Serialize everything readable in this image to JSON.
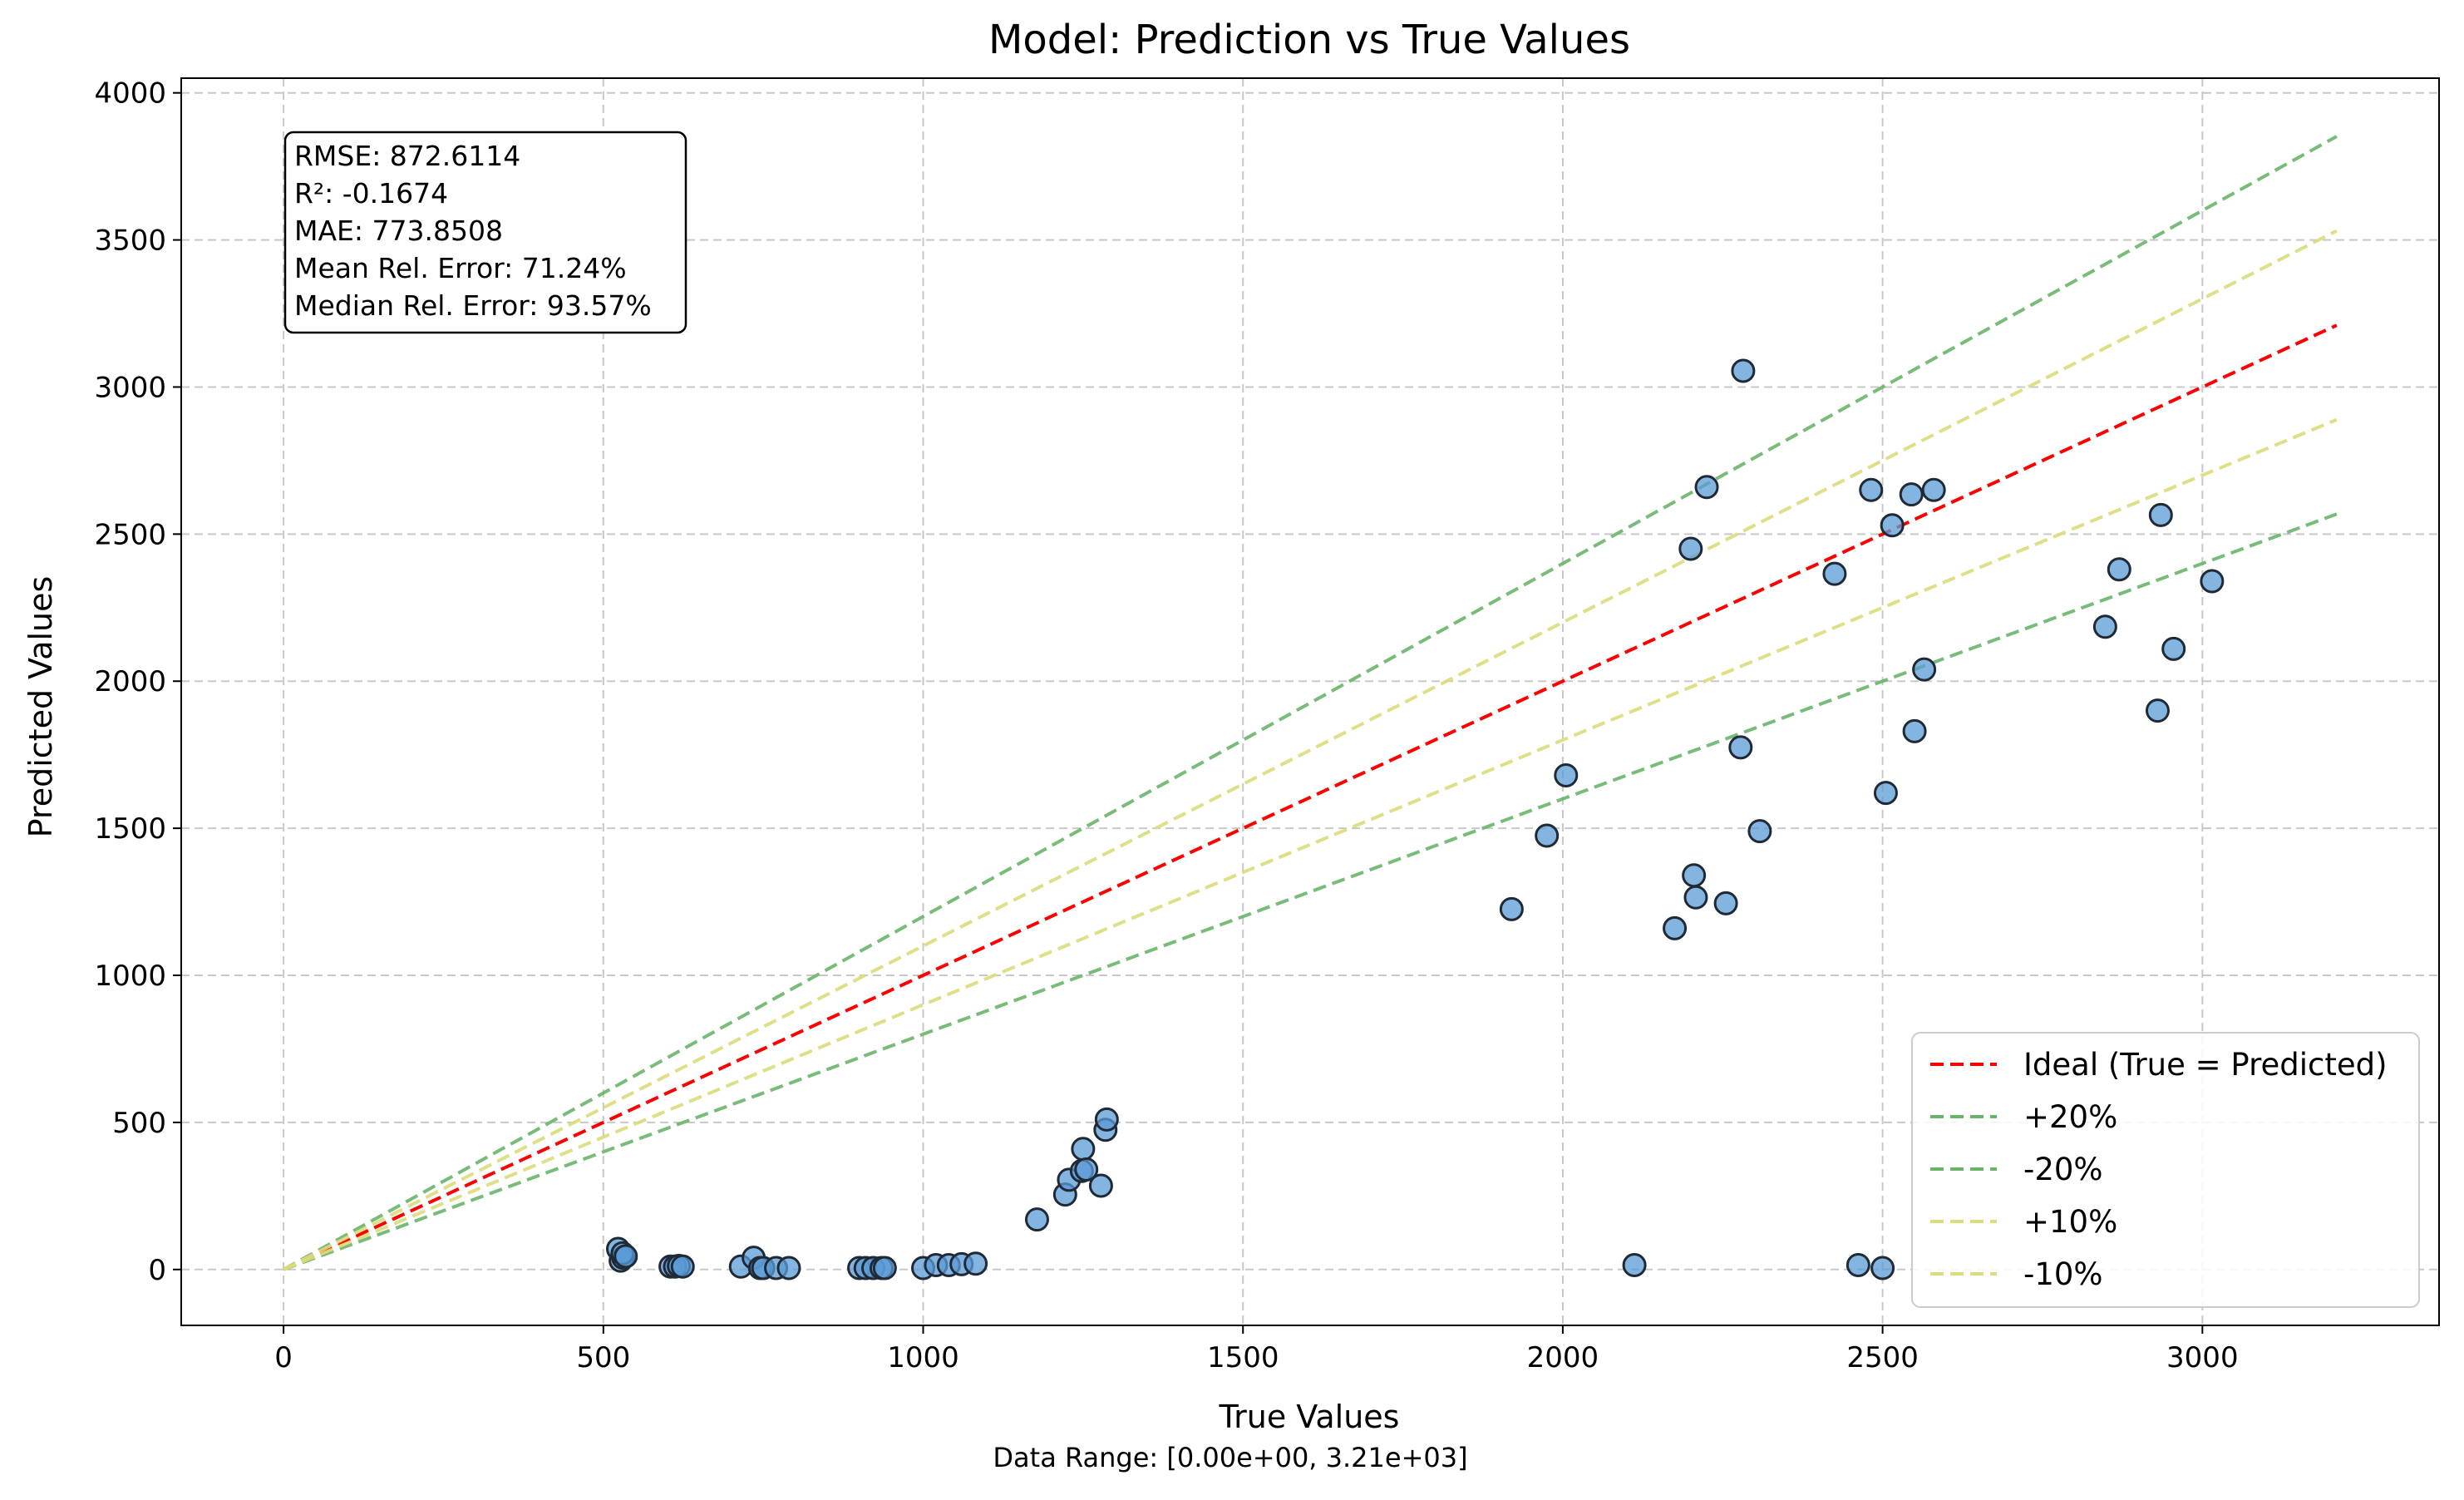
{
  "chart_data": {
    "type": "scatter",
    "title": "Model: Prediction vs True Values",
    "xlabel": "True Values",
    "ylabel": "Predicted Values",
    "subtitle": "Data Range: [0.00e+00, 3.21e+03]",
    "xlim": [
      -160,
      3370
    ],
    "ylim": [
      -190,
      4050
    ],
    "xticks": [
      0,
      500,
      1000,
      1500,
      2000,
      2500,
      3000
    ],
    "yticks": [
      0,
      500,
      1000,
      1500,
      2000,
      2500,
      3000,
      3500,
      4000
    ],
    "grid": true,
    "legend_position": "lower right",
    "stats_lines": [
      "RMSE: 872.6114",
      "R²: -0.1674",
      "MAE: 773.8508",
      "Mean Rel. Error: 71.24%",
      "Median Rel. Error: 93.57%"
    ],
    "reference_lines": [
      {
        "name": "Ideal (True = Predicted)",
        "slope": 1.0,
        "color": "#ff0000",
        "x_end": 3210
      },
      {
        "name": "+20%",
        "slope": 1.2,
        "color": "#6ab46a",
        "x_end": 3210
      },
      {
        "name": "-20%",
        "slope": 0.8,
        "color": "#6ab46a",
        "x_end": 3210
      },
      {
        "name": "+10%",
        "slope": 1.1,
        "color": "#dcdc7a",
        "x_end": 3210
      },
      {
        "name": "-10%",
        "slope": 0.9,
        "color": "#dcdc7a",
        "x_end": 3210
      }
    ],
    "points": {
      "color": "#5b9bd5",
      "edge_color": "#1f2a36",
      "x": [
        523,
        527,
        531,
        530,
        535,
        605,
        612,
        618,
        624,
        715,
        735,
        745,
        750,
        770,
        790,
        900,
        910,
        922,
        935,
        940,
        1000,
        1020,
        1040,
        1060,
        1082,
        1178,
        1222,
        1228,
        1248,
        1250,
        1255,
        1278,
        1285,
        1287,
        1920,
        1975,
        2005,
        2112,
        2175,
        2200,
        2205,
        2208,
        2225,
        2255,
        2278,
        2282,
        2308,
        2425,
        2462,
        2482,
        2500,
        2505,
        2515,
        2545,
        2550,
        2565,
        2580,
        2848,
        2870,
        2930,
        2935,
        2955,
        3015
      ],
      "y": [
        70,
        30,
        40,
        55,
        45,
        10,
        10,
        12,
        10,
        10,
        40,
        5,
        5,
        5,
        5,
        5,
        5,
        5,
        5,
        5,
        5,
        15,
        15,
        18,
        20,
        170,
        255,
        305,
        335,
        410,
        340,
        285,
        475,
        510,
        1225,
        1475,
        1680,
        15,
        1160,
        2450,
        1340,
        1265,
        2660,
        1245,
        1775,
        3055,
        1490,
        2365,
        15,
        2650,
        5,
        1620,
        2530,
        2635,
        1830,
        2040,
        2650,
        2185,
        2380,
        1900,
        2565,
        2110,
        2340
      ]
    }
  }
}
